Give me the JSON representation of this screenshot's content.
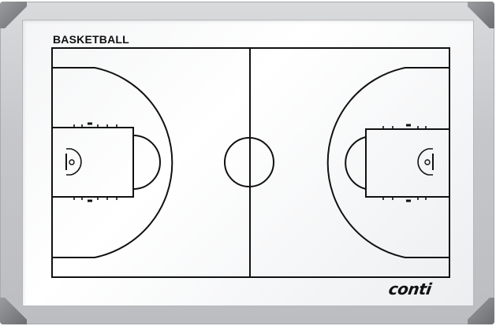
{
  "board": {
    "title": "BASKETBALL",
    "brand": "conti",
    "frame_color": "#c4c5c8",
    "surface_color": "#ffffff",
    "line_color": "#111111",
    "corner_color": "#8a8b8e"
  }
}
